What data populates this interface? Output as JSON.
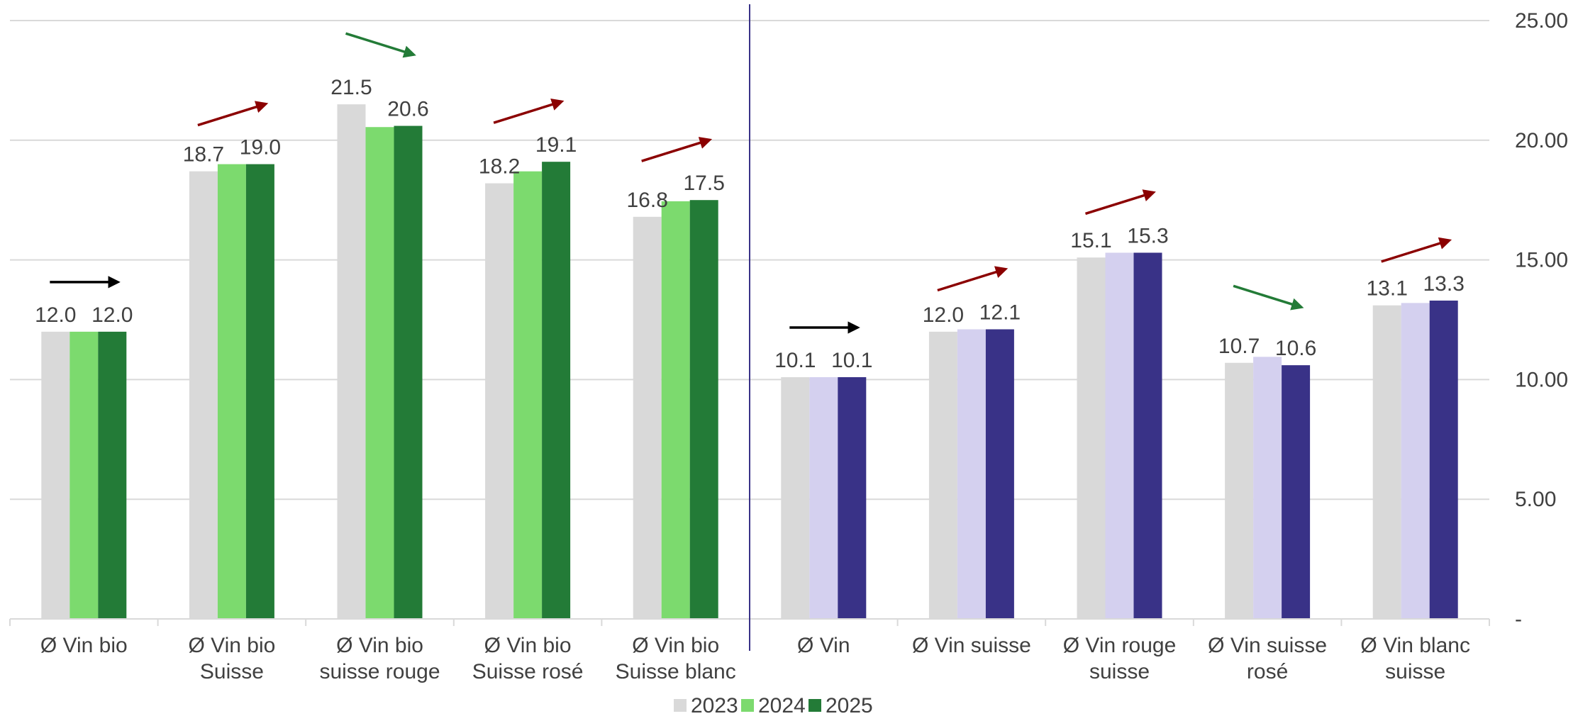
{
  "chart_data": {
    "type": "bar",
    "categories": [
      "Ø Vin bio",
      "Ø Vin bio\nSuisse",
      "Ø Vin bio\nsuisse rouge",
      "Ø Vin bio\nSuisse rosé",
      "Ø Vin bio\nSuisse blanc",
      "Ø Vin",
      "Ø Vin suisse",
      "Ø Vin rouge\nsuisse",
      "Ø Vin suisse\nrosé",
      "Ø Vin blanc\nsuisse"
    ],
    "series": [
      {
        "name": "2023",
        "values": [
          12.0,
          18.7,
          21.5,
          18.2,
          16.8,
          10.1,
          12.0,
          15.1,
          10.7,
          13.1
        ],
        "labels": [
          "12.0",
          "18.7",
          "21.5",
          "18.2",
          "16.8",
          "10.1",
          "12.0",
          "15.1",
          "10.7",
          "13.1"
        ]
      },
      {
        "name": "2024",
        "values": [
          12.0,
          19.0,
          20.55,
          18.7,
          17.45,
          10.1,
          12.1,
          15.3,
          10.95,
          13.2
        ],
        "labels": [
          "",
          "",
          "",
          "",
          "",
          "",
          "",
          "",
          "",
          ""
        ]
      },
      {
        "name": "2025",
        "values": [
          12.0,
          19.0,
          20.6,
          19.1,
          17.5,
          10.1,
          12.1,
          15.3,
          10.6,
          13.3
        ],
        "labels": [
          "12.0",
          "19.0",
          "20.6",
          "19.1",
          "17.5",
          "10.1",
          "12.1",
          "15.3",
          "10.6",
          "13.3"
        ]
      }
    ],
    "colors": {
      "2023": [
        "#d9d9d9",
        "#d9d9d9",
        "#d9d9d9",
        "#d9d9d9",
        "#d9d9d9",
        "#d9d9d9",
        "#d9d9d9",
        "#d9d9d9",
        "#d9d9d9",
        "#d9d9d9"
      ],
      "2024": [
        "#7cda6e",
        "#7cda6e",
        "#7cda6e",
        "#7cda6e",
        "#7cda6e",
        "#d4d0ef",
        "#d4d0ef",
        "#d4d0ef",
        "#d4d0ef",
        "#d4d0ef"
      ],
      "2025": [
        "#237b37",
        "#237b37",
        "#237b37",
        "#237b37",
        "#237b37",
        "#393287",
        "#393287",
        "#393287",
        "#393287",
        "#393287"
      ]
    },
    "legend": {
      "position": "bottom",
      "items": [
        {
          "name": "2023",
          "color": "#d9d9d9"
        },
        {
          "name": "2024",
          "color": "#7cda6e"
        },
        {
          "name": "2025",
          "color": "#237b37"
        }
      ]
    },
    "y_axis": {
      "side": "right",
      "ticks": [
        0,
        5,
        10,
        15,
        20,
        25
      ],
      "tick_labels": [
        "-",
        "5.00",
        "10.00",
        "15.00",
        "20.00",
        "25.00"
      ],
      "ylim": [
        0,
        25
      ]
    },
    "grid": true,
    "separator_after_category": 5,
    "trend_arrows": [
      {
        "category": "Ø Vin bio",
        "direction": "flat",
        "color": "#000000"
      },
      {
        "category": "Ø Vin bio\nSuisse",
        "direction": "up",
        "color": "#8b0000"
      },
      {
        "category": "Ø Vin bio\nsuisse rouge",
        "direction": "down",
        "color": "#237b37"
      },
      {
        "category": "Ø Vin bio\nSuisse rosé",
        "direction": "up",
        "color": "#8b0000"
      },
      {
        "category": "Ø Vin bio\nSuisse blanc",
        "direction": "up",
        "color": "#8b0000"
      },
      {
        "category": "Ø Vin",
        "direction": "flat",
        "color": "#000000"
      },
      {
        "category": "Ø Vin suisse",
        "direction": "up",
        "color": "#8b0000"
      },
      {
        "category": "Ø Vin rouge\nsuisse",
        "direction": "up",
        "color": "#8b0000"
      },
      {
        "category": "Ø Vin suisse\nrosé",
        "direction": "down",
        "color": "#237b37"
      },
      {
        "category": "Ø Vin blanc\nsuisse",
        "direction": "up",
        "color": "#8b0000"
      }
    ]
  }
}
